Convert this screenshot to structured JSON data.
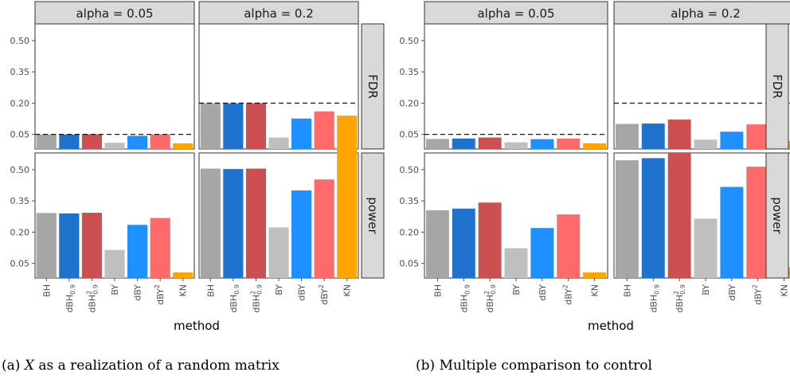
{
  "panels": [
    {
      "caption_prefix": "(a)",
      "caption_var": "X",
      "caption_rest": "as a realization of a random matrix"
    },
    {
      "caption_prefix": "(b)",
      "caption_var": "",
      "caption_rest": "Multiple comparison to control"
    }
  ],
  "chart_data": [
    {
      "type": "bar",
      "facet_columns": [
        "alpha = 0.05",
        "alpha = 0.2"
      ],
      "facet_rows": [
        "FDR",
        "power"
      ],
      "categories": [
        "BH",
        "dBH_0.9",
        "dBH^2_0.9",
        "BY",
        "dBY",
        "dBY^2",
        "KN"
      ],
      "colors": [
        "#a6a6a6",
        "#1f73cc",
        "#cc5050",
        "#bfbfbf",
        "#1e90ff",
        "#ff6b6b",
        "#ffa500"
      ],
      "xlabel": "method",
      "y_ticks": [
        "0.05",
        "0.20",
        "0.35",
        "0.50"
      ],
      "ylim": [
        -0.02,
        0.58
      ],
      "reference_lines": {
        "alpha = 0.05": 0.05,
        "alpha = 0.2": 0.2
      },
      "series": [
        {
          "facet_row": "FDR",
          "facet_col": "alpha = 0.05",
          "values": [
            0.05,
            0.05,
            0.051,
            0.01,
            0.043,
            0.05,
            0.007
          ]
        },
        {
          "facet_row": "FDR",
          "facet_col": "alpha = 0.2",
          "values": [
            0.2,
            0.199,
            0.2,
            0.035,
            0.126,
            0.16,
            0.14
          ]
        },
        {
          "facet_row": "power",
          "facet_col": "alpha = 0.05",
          "values": [
            0.292,
            0.29,
            0.293,
            0.115,
            0.235,
            0.268,
            0.007
          ]
        },
        {
          "facet_row": "power",
          "facet_col": "alpha = 0.2",
          "values": [
            0.505,
            0.503,
            0.505,
            0.223,
            0.4,
            0.453,
            0.613
          ]
        }
      ]
    },
    {
      "type": "bar",
      "facet_columns": [
        "alpha = 0.05",
        "alpha = 0.2"
      ],
      "facet_rows": [
        "FDR",
        "power"
      ],
      "categories": [
        "BH",
        "dBH_0.9",
        "dBH^2_0.9",
        "BY",
        "dBY",
        "dBY^2",
        "KN"
      ],
      "colors": [
        "#a6a6a6",
        "#1f73cc",
        "#cc5050",
        "#bfbfbf",
        "#1e90ff",
        "#ff6b6b",
        "#ffa500"
      ],
      "xlabel": "method",
      "y_ticks": [
        "0.05",
        "0.20",
        "0.35",
        "0.50"
      ],
      "ylim": [
        -0.02,
        0.58
      ],
      "reference_lines": {
        "alpha = 0.05": 0.05,
        "alpha = 0.2": 0.2
      },
      "series": [
        {
          "facet_row": "FDR",
          "facet_col": "alpha = 0.05",
          "values": [
            0.028,
            0.03,
            0.035,
            0.012,
            0.027,
            0.03,
            0.007
          ]
        },
        {
          "facet_row": "FDR",
          "facet_col": "alpha = 0.2",
          "values": [
            0.1,
            0.102,
            0.121,
            0.025,
            0.063,
            0.098,
            0.018
          ]
        },
        {
          "facet_row": "power",
          "facet_col": "alpha = 0.05",
          "values": [
            0.305,
            0.313,
            0.342,
            0.123,
            0.22,
            0.285,
            0.007
          ]
        },
        {
          "facet_row": "power",
          "facet_col": "alpha = 0.2",
          "values": [
            0.545,
            0.555,
            0.583,
            0.265,
            0.417,
            0.514,
            0.033
          ]
        }
      ]
    }
  ]
}
